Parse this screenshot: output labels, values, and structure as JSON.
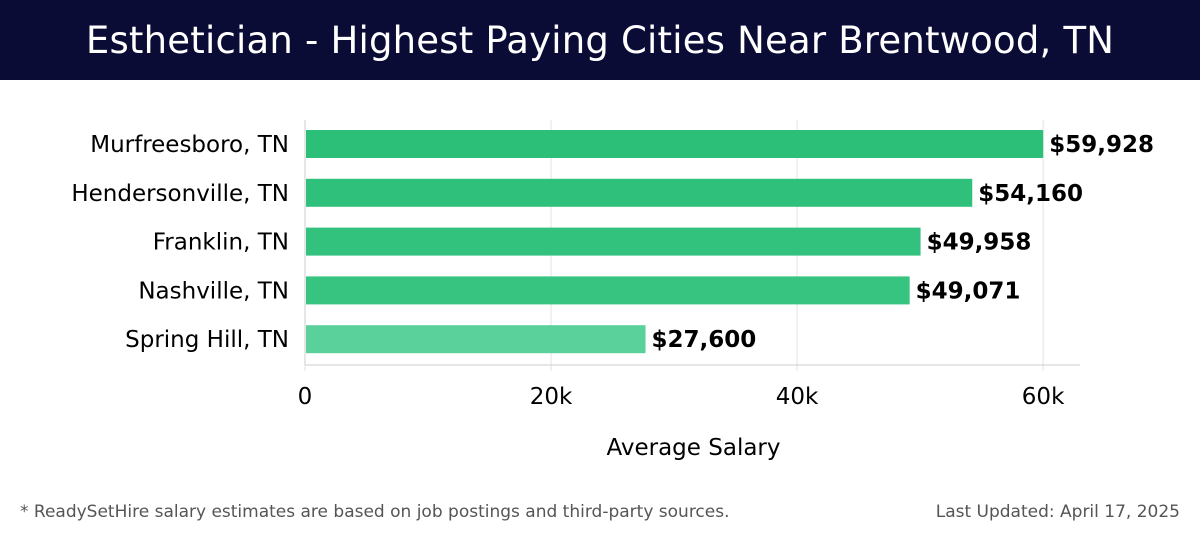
{
  "header": {
    "title": "Esthetician - Highest Paying Cities Near Brentwood, TN"
  },
  "chart_data": {
    "type": "bar",
    "orientation": "horizontal",
    "categories": [
      "Murfreesboro, TN",
      "Hendersonville, TN",
      "Franklin, TN",
      "Nashville, TN",
      "Spring Hill, TN"
    ],
    "values": [
      59928,
      54160,
      49958,
      49071,
      27600
    ],
    "value_labels": [
      "$59,928",
      "$54,160",
      "$49,958",
      "$49,071",
      "$27,600"
    ],
    "xlabel": "Average Salary",
    "ylabel": "",
    "xlim": [
      0,
      63000
    ],
    "x_ticks": [
      0,
      20000,
      40000,
      60000
    ],
    "x_tick_labels": [
      "0",
      "20k",
      "40k",
      "60k"
    ],
    "grid": "vertical",
    "bar_colors": [
      "#2bbf77",
      "#2fc17b",
      "#33c27e",
      "#36c480",
      "#5ad09a"
    ]
  },
  "footer": {
    "note": "* ReadySetHire salary estimates are based on job postings and third-party sources.",
    "updated": "Last Updated: April 17, 2025"
  }
}
